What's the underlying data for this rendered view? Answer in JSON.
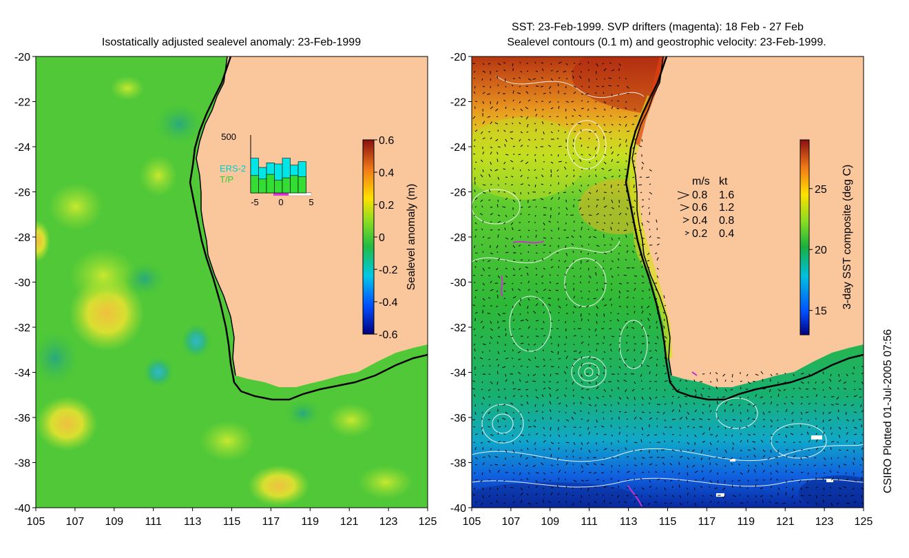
{
  "left_panel": {
    "title": "Isostatically adjusted sealevel anomaly: 23-Feb-1999",
    "colorbar": {
      "label": "Sealevel anomaly (m)",
      "ticks": [
        "0.6",
        "0.4",
        "0.2",
        "0",
        "-0.2",
        "-0.4",
        "-0.6"
      ],
      "range": [
        -0.6,
        0.6
      ]
    },
    "inset": {
      "ymax_label": "500",
      "series": [
        "ERS-2",
        "T/P"
      ],
      "x_ticks": [
        "-5",
        "0",
        "5"
      ],
      "ers2_color": "#00e5e5",
      "tp_color": "#33dd33",
      "bars_ers2": [
        300,
        220,
        260,
        250,
        300,
        240,
        270
      ],
      "bars_tp": [
        150,
        120,
        160,
        110,
        130,
        150,
        140
      ]
    }
  },
  "right_panel": {
    "title_line1": "SST: 23-Feb-1999. SVP drifters (magenta): 18 Feb - 27 Feb",
    "title_line2": "Sealevel contours (0.1 m) and geostrophic velocity: 23-Feb-1999.",
    "colorbar": {
      "label": "3-day SST composite (deg C)",
      "ticks": [
        "25",
        "20",
        "15"
      ],
      "range": [
        13,
        29
      ]
    },
    "velocity_key": {
      "header_ms": "m/s",
      "header_kt": "kt",
      "rows": [
        {
          "ms": "0.8",
          "kt": "1.6"
        },
        {
          "ms": "0.6",
          "kt": "1.2"
        },
        {
          "ms": "0.4",
          "kt": "0.8"
        },
        {
          "ms": "0.2",
          "kt": "0.4"
        }
      ]
    }
  },
  "axes": {
    "lat_ticks": [
      "-20",
      "-22",
      "-24",
      "-26",
      "-28",
      "-30",
      "-32",
      "-34",
      "-36",
      "-38",
      "-40"
    ],
    "lon_ticks": [
      "105",
      "107",
      "109",
      "111",
      "113",
      "115",
      "117",
      "119",
      "121",
      "123",
      "125"
    ]
  },
  "colors": {
    "land": "#f9c79b",
    "ocean_green": "#4ccc33",
    "coast": "#000000",
    "drifter": "#cc33cc"
  },
  "credit": "CSIRO Plotted 01-Jul-2005 07:56"
}
